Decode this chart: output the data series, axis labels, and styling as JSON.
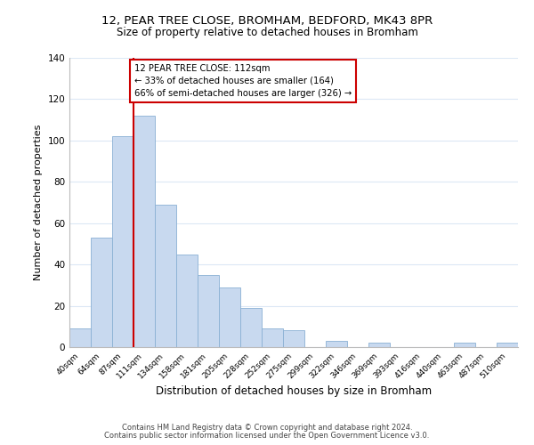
{
  "title_line1": "12, PEAR TREE CLOSE, BROMHAM, BEDFORD, MK43 8PR",
  "title_line2": "Size of property relative to detached houses in Bromham",
  "xlabel": "Distribution of detached houses by size in Bromham",
  "ylabel": "Number of detached properties",
  "bar_labels": [
    "40sqm",
    "64sqm",
    "87sqm",
    "111sqm",
    "134sqm",
    "158sqm",
    "181sqm",
    "205sqm",
    "228sqm",
    "252sqm",
    "275sqm",
    "299sqm",
    "322sqm",
    "346sqm",
    "369sqm",
    "393sqm",
    "416sqm",
    "440sqm",
    "463sqm",
    "487sqm",
    "510sqm"
  ],
  "bar_values": [
    9,
    53,
    102,
    112,
    69,
    45,
    35,
    29,
    19,
    9,
    8,
    0,
    3,
    0,
    2,
    0,
    0,
    0,
    2,
    0,
    2
  ],
  "bar_color": "#c8d9ef",
  "bar_edge_color": "#8ab0d4",
  "vline_index": 3,
  "vline_color": "#cc0000",
  "annotation_text": "12 PEAR TREE CLOSE: 112sqm\n← 33% of detached houses are smaller (164)\n66% of semi-detached houses are larger (326) →",
  "annotation_box_color": "#ffffff",
  "annotation_box_edge": "#cc0000",
  "ylim": [
    0,
    140
  ],
  "yticks": [
    0,
    20,
    40,
    60,
    80,
    100,
    120,
    140
  ],
  "footer_line1": "Contains HM Land Registry data © Crown copyright and database right 2024.",
  "footer_line2": "Contains public sector information licensed under the Open Government Licence v3.0.",
  "bg_color": "#ffffff",
  "grid_color": "#dce8f5"
}
